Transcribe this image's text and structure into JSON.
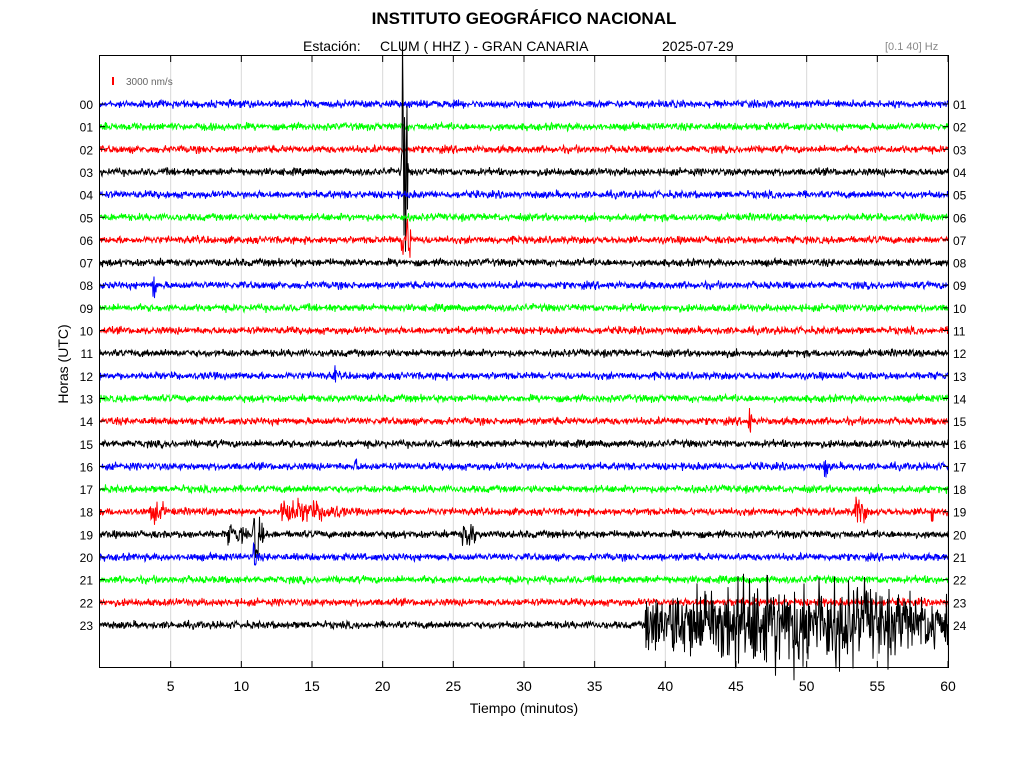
{
  "header": {
    "title": "INSTITUTO GEOGRÁFICO NACIONAL",
    "station_label": "Estación:",
    "station": "CLUM ( HHZ ) - GRAN CANARIA",
    "date": "2025-07-29",
    "filter": "[0.1 40] Hz"
  },
  "chart_data": {
    "type": "line",
    "xlabel": "Tiempo (minutos)",
    "ylabel": "Horas (UTC)",
    "xlim": [
      0,
      60
    ],
    "x_ticks": [
      "5",
      "10",
      "15",
      "20",
      "25",
      "30",
      "35",
      "40",
      "45",
      "50",
      "55",
      "60"
    ],
    "scale_label": "3000 nm/s",
    "scale_color": "#ff0000",
    "left_labels": [
      "00",
      "01",
      "02",
      "03",
      "04",
      "05",
      "06",
      "07",
      "08",
      "09",
      "10",
      "11",
      "12",
      "13",
      "14",
      "15",
      "16",
      "17",
      "18",
      "19",
      "20",
      "21",
      "22",
      "23"
    ],
    "right_labels": [
      "01",
      "02",
      "03",
      "04",
      "05",
      "06",
      "07",
      "08",
      "09",
      "10",
      "11",
      "12",
      "13",
      "14",
      "15",
      "16",
      "17",
      "18",
      "19",
      "20",
      "21",
      "22",
      "23",
      "24"
    ],
    "trace_colors": [
      "#0000ff",
      "#00ff00",
      "#ff0000",
      "#000000"
    ],
    "grid": true,
    "events": [
      {
        "hour": 3,
        "minute": 21.3,
        "amplitude": 9,
        "duration": 0.5
      },
      {
        "hour": 6,
        "minute": 21.3,
        "amplitude": 2,
        "duration": 0.8
      },
      {
        "hour": 8,
        "minute": 3.7,
        "amplitude": 1,
        "duration": 0.3
      },
      {
        "hour": 12,
        "minute": 16.5,
        "amplitude": 0.6,
        "duration": 0.3
      },
      {
        "hour": 14,
        "minute": 45.8,
        "amplitude": 1.6,
        "duration": 0.3
      },
      {
        "hour": 16,
        "minute": 18.0,
        "amplitude": 0.5,
        "duration": 0.3
      },
      {
        "hour": 16,
        "minute": 51.2,
        "amplitude": 0.9,
        "duration": 0.3
      },
      {
        "hour": 18,
        "minute": 3.5,
        "amplitude": 0.6,
        "duration": 1.2
      },
      {
        "hour": 18,
        "minute": 12.8,
        "amplitude": 0.6,
        "duration": 4.5
      },
      {
        "hour": 18,
        "minute": 53.3,
        "amplitude": 0.9,
        "duration": 1.0
      },
      {
        "hour": 18,
        "minute": 58.8,
        "amplitude": 0.9,
        "duration": 0.3
      },
      {
        "hour": 19,
        "minute": 9.0,
        "amplitude": 0.5,
        "duration": 1.5
      },
      {
        "hour": 19,
        "minute": 10.8,
        "amplitude": 1.8,
        "duration": 0.8
      },
      {
        "hour": 19,
        "minute": 25.6,
        "amplitude": 1.0,
        "duration": 1.0
      },
      {
        "hour": 20,
        "minute": 10.8,
        "amplitude": 0.9,
        "duration": 0.3
      },
      {
        "hour": 23,
        "minute": 38.5,
        "amplitude": 2.6,
        "duration": 21.5
      }
    ]
  }
}
